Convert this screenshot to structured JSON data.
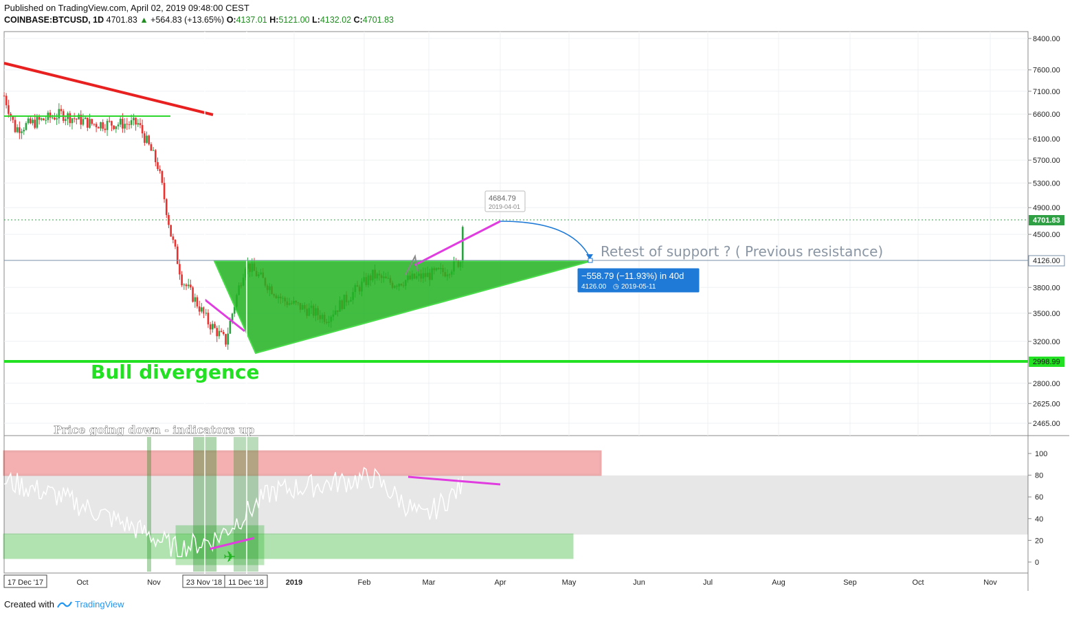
{
  "header": {
    "published": "Published on TradingView.com, April 02, 2019 09:48:00 CEST",
    "symbol": "COINBASE:BTCUSD, 1D",
    "last": "4701.83",
    "change_arrow": "▲",
    "change": "+564.83 (+13.65%)",
    "o_label": "O:",
    "o": "4137.01",
    "h_label": "H:",
    "h": "5121.00",
    "l_label": "L:",
    "l": "4132.02",
    "c_label": "C:",
    "c": "4701.83"
  },
  "annotations": {
    "bull_divergence": "Bull divergence",
    "price_down_indicators_up": "Price going down - indicators up",
    "retest": "Retest of support ? ( Previous resistance)",
    "callout_top": "4684.79",
    "callout_date": "2019-04-01",
    "measure_main": "−558.79 (−11.93%) in 40d",
    "measure_sub": "4126.00",
    "measure_date": "2019-05-11"
  },
  "price_axis": {
    "ticks": [
      "8400.00",
      "7600.00",
      "7100.00",
      "6600.00",
      "6100.00",
      "5700.00",
      "5300.00",
      "4900.00",
      "4500.00",
      "3800.00",
      "3500.00",
      "3200.00",
      "2800.00",
      "2625.00",
      "2465.00"
    ],
    "tick_values": [
      8400,
      7600,
      7100,
      6600,
      6100,
      5700,
      5300,
      4900,
      4500,
      3800,
      3500,
      3200,
      2800,
      2625,
      2465
    ],
    "current_label": "4701.83",
    "support_label": "4126.00",
    "low_label": "2998.99"
  },
  "rsi_axis": {
    "ticks": [
      "100",
      "80",
      "60",
      "40",
      "20",
      "0"
    ],
    "tick_values": [
      100,
      80,
      60,
      40,
      20,
      0
    ]
  },
  "time_axis": {
    "labels": [
      "17 Dec '17",
      "Oct",
      "Nov",
      "23 Nov '18",
      "11 Dec '18",
      "2019",
      "Feb",
      "Mar",
      "Apr",
      "May",
      "Jun",
      "Jul",
      "Aug",
      "Sep",
      "Oct",
      "Nov"
    ]
  },
  "colors": {
    "up": "#2ea043",
    "down": "#e8302e",
    "trend_red": "#e82020",
    "triangle_fill": "#22b222",
    "triangle_stroke": "#2bd62b",
    "magenta": "#e03ce0",
    "support_green": "#22e022",
    "rsi_line": "#ffffff",
    "panel_bg": "#ffffff",
    "rsi_band": "#3a3a44",
    "callout_blue": "#1e7ad6"
  },
  "footer": {
    "created_with": "Created with",
    "brand": "TradingView"
  },
  "chart_data": {
    "type": "candlestick",
    "symbol": "COINBASE:BTCUSD",
    "interval": "1D",
    "y_scale": "log",
    "ylim": [
      2400,
      8600
    ],
    "x_range": [
      "2018-09-05",
      "2019-11-30"
    ],
    "approx_close_path": [
      {
        "date": "2018-09-05",
        "close": 7000
      },
      {
        "date": "2018-09-10",
        "close": 6300
      },
      {
        "date": "2018-10-01",
        "close": 6600
      },
      {
        "date": "2018-10-15",
        "close": 6400
      },
      {
        "date": "2018-11-05",
        "close": 6400
      },
      {
        "date": "2018-11-14",
        "close": 5600
      },
      {
        "date": "2018-11-20",
        "close": 4500
      },
      {
        "date": "2018-11-25",
        "close": 3900
      },
      {
        "date": "2018-12-07",
        "close": 3400
      },
      {
        "date": "2018-12-15",
        "close": 3200
      },
      {
        "date": "2018-12-24",
        "close": 4100
      },
      {
        "date": "2019-01-10",
        "close": 3650
      },
      {
        "date": "2019-01-30",
        "close": 3450
      },
      {
        "date": "2019-02-20",
        "close": 3950
      },
      {
        "date": "2019-03-01",
        "close": 3850
      },
      {
        "date": "2019-03-25",
        "close": 4000
      },
      {
        "date": "2019-04-01",
        "close": 4137
      },
      {
        "date": "2019-04-02",
        "close": 4701.83
      }
    ],
    "levels": {
      "current": 4701.83,
      "support": 4126.0,
      "bull_line": 2998.99
    },
    "rsi": {
      "range": [
        0,
        100
      ],
      "overbought_band": [
        80,
        100
      ],
      "oversold_band": [
        0,
        25
      ],
      "approx_path": [
        {
          "date": "2018-09-05",
          "rsi": 75
        },
        {
          "date": "2018-10-01",
          "rsi": 60
        },
        {
          "date": "2018-11-05",
          "rsi": 30
        },
        {
          "date": "2018-11-23",
          "rsi": 12
        },
        {
          "date": "2018-12-11",
          "rsi": 22
        },
        {
          "date": "2019-01-05",
          "rsi": 65
        },
        {
          "date": "2019-02-20",
          "rsi": 78
        },
        {
          "date": "2019-03-15",
          "rsi": 40
        },
        {
          "date": "2019-04-02",
          "rsi": 70
        }
      ]
    }
  }
}
